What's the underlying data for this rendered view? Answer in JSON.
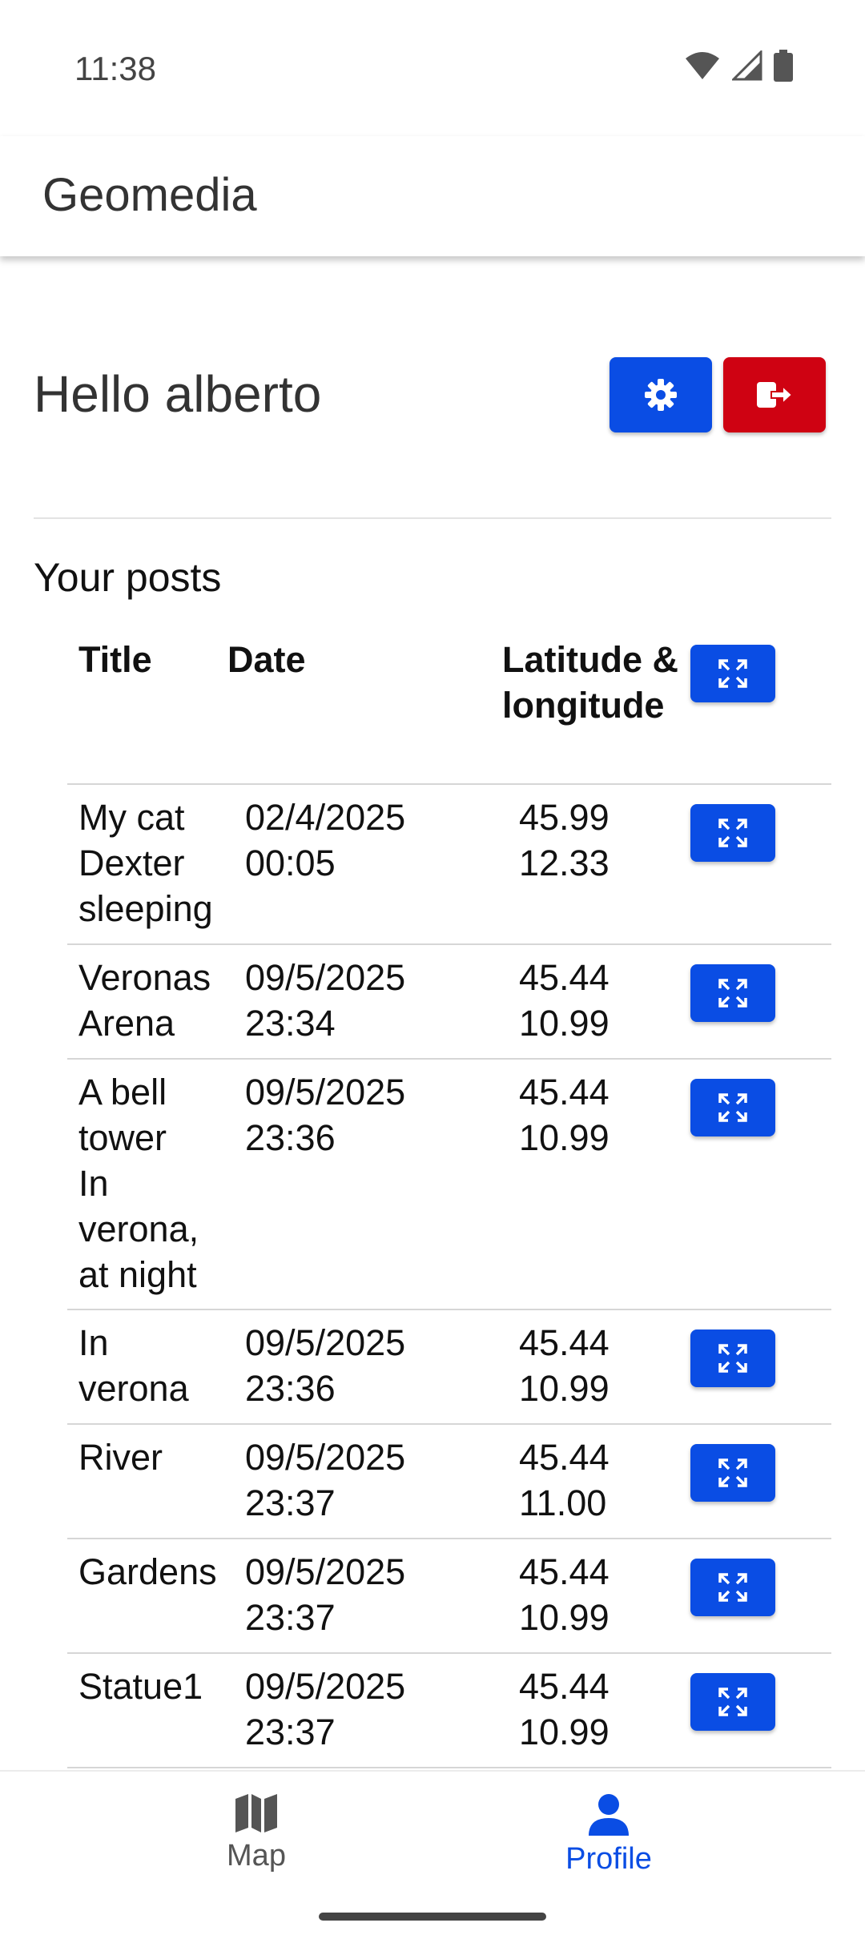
{
  "status_bar": {
    "time": "11:38",
    "icons": [
      "wifi-icon",
      "signal-icon",
      "battery-icon"
    ]
  },
  "app_bar": {
    "title": "Geomedia"
  },
  "profile": {
    "greeting": "Hello alberto",
    "settings_icon": "gear-icon",
    "logout_icon": "logout-icon"
  },
  "posts": {
    "section_title": "Your posts",
    "columns": {
      "title": "Title",
      "date": "Date",
      "latlng": "Latitude & longitude"
    },
    "rows": [
      {
        "title": "My cat Dexter sleeping",
        "date": "02/4/2025",
        "time": "00:05",
        "lat": "45.99",
        "lng": "12.33"
      },
      {
        "title": "Veronas Arena",
        "date": "09/5/2025",
        "time": "23:34",
        "lat": "45.44",
        "lng": "10.99"
      },
      {
        "title": "A bell tower In verona, at night",
        "date": "09/5/2025",
        "time": "23:36",
        "lat": "45.44",
        "lng": "10.99"
      },
      {
        "title": "In verona",
        "date": "09/5/2025",
        "time": "23:36",
        "lat": "45.44",
        "lng": "10.99"
      },
      {
        "title": "River",
        "date": "09/5/2025",
        "time": "23:37",
        "lat": "45.44",
        "lng": "11.00"
      },
      {
        "title": "Gardens",
        "date": "09/5/2025",
        "time": "23:37",
        "lat": "45.44",
        "lng": "10.99"
      },
      {
        "title": "Statue1",
        "date": "09/5/2025",
        "time": "23:37",
        "lat": "45.44",
        "lng": "10.99"
      }
    ]
  },
  "bottom_nav": {
    "items": [
      {
        "label": "Map",
        "icon": "map-icon",
        "active": false
      },
      {
        "label": "Profile",
        "icon": "person-icon",
        "active": true
      }
    ]
  },
  "colors": {
    "primary": "#0a4de4",
    "danger": "#cf0212"
  }
}
